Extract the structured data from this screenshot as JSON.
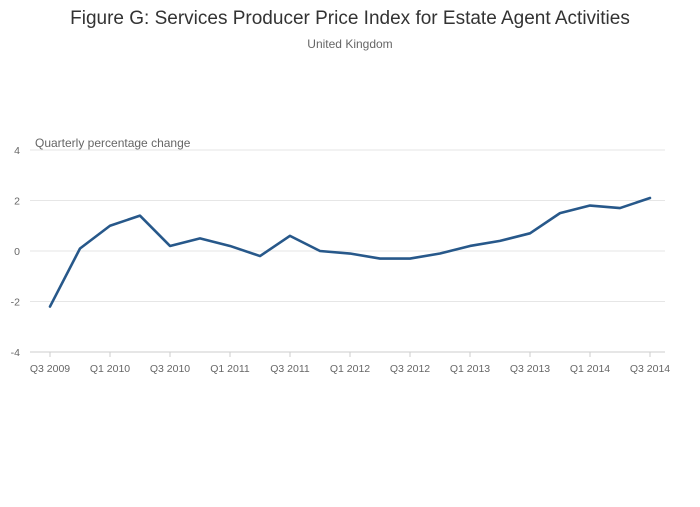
{
  "chart_data": {
    "type": "line",
    "title": "Figure G: Services Producer Price Index for Estate Agent Activities",
    "subtitle": "United Kingdom",
    "ylabel": "Quarterly percentage change",
    "xlabel": "",
    "ylim": [
      -4,
      4
    ],
    "y_ticks": [
      4,
      2,
      0,
      -2,
      -4
    ],
    "grid": true,
    "legend": "none",
    "x": [
      "Q3 2009",
      "Q4 2009",
      "Q1 2010",
      "Q2 2010",
      "Q3 2010",
      "Q4 2010",
      "Q1 2011",
      "Q2 2011",
      "Q3 2011",
      "Q4 2011",
      "Q1 2012",
      "Q2 2012",
      "Q3 2012",
      "Q4 2012",
      "Q1 2013",
      "Q2 2013",
      "Q3 2013",
      "Q4 2013",
      "Q1 2014",
      "Q2 2014",
      "Q3 2014"
    ],
    "x_tick_labels": [
      "Q3 2009",
      "Q1 2010",
      "Q3 2010",
      "Q1 2011",
      "Q3 2011",
      "Q1 2012",
      "Q3 2012",
      "Q1 2013",
      "Q3 2013",
      "Q1 2014",
      "Q3 2014"
    ],
    "series": [
      {
        "values": [
          -2.2,
          0.1,
          1.0,
          1.4,
          0.2,
          0.5,
          0.2,
          -0.2,
          0.6,
          0.0,
          -0.1,
          -0.3,
          -0.3,
          -0.1,
          0.2,
          0.4,
          0.7,
          1.5,
          1.8,
          1.7,
          2.1
        ],
        "color": "#27588a"
      }
    ]
  }
}
